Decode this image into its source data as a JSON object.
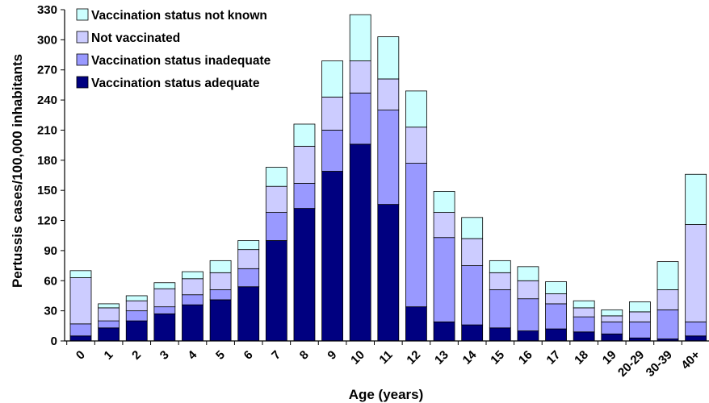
{
  "chart_data": {
    "type": "bar",
    "stacked": true,
    "title": "",
    "xlabel": "Age (years)",
    "ylabel": "Pertussis cases/100,000 inhabitants",
    "ylim": [
      0,
      330
    ],
    "yticks": [
      0,
      30,
      60,
      90,
      120,
      150,
      180,
      210,
      240,
      270,
      300,
      330
    ],
    "grid": false,
    "legend_position": "top-left",
    "categories": [
      "0",
      "1",
      "2",
      "3",
      "4",
      "5",
      "6",
      "7",
      "8",
      "9",
      "10",
      "11",
      "12",
      "13",
      "14",
      "15",
      "16",
      "17",
      "18",
      "19",
      "20-29",
      "30-39",
      "40+"
    ],
    "series": [
      {
        "name": "Vaccination status adequate",
        "color": "#000080",
        "values": [
          5,
          13,
          20,
          27,
          36,
          41,
          54,
          100,
          132,
          169,
          196,
          136,
          34,
          19,
          16,
          13,
          10,
          12,
          9,
          7,
          3,
          2,
          5
        ]
      },
      {
        "name": "Vaccination status inadequate",
        "color": "#9999ff",
        "values": [
          12,
          7,
          10,
          7,
          10,
          10,
          18,
          28,
          25,
          41,
          51,
          94,
          143,
          84,
          59,
          38,
          32,
          25,
          15,
          12,
          16,
          29,
          14
        ]
      },
      {
        "name": "Not vaccinated",
        "color": "#ccccff",
        "values": [
          46,
          13,
          10,
          18,
          16,
          17,
          19,
          26,
          37,
          33,
          32,
          31,
          36,
          25,
          27,
          17,
          18,
          10,
          9,
          6,
          10,
          20,
          97
        ]
      },
      {
        "name": "Vaccination status not known",
        "color": "#ccffff",
        "values": [
          7,
          4,
          5,
          6,
          7,
          12,
          9,
          19,
          22,
          36,
          46,
          42,
          36,
          21,
          21,
          12,
          14,
          12,
          7,
          6,
          10,
          28,
          50
        ]
      }
    ]
  }
}
